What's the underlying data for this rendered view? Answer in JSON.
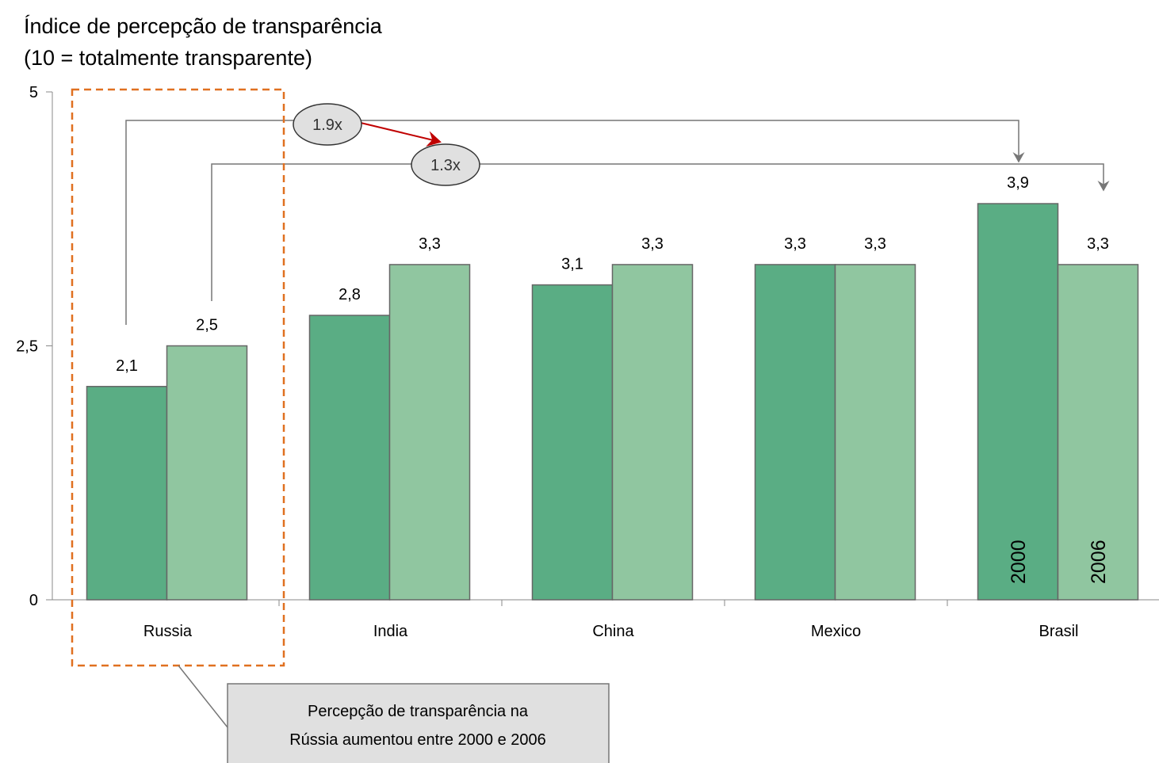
{
  "chart_data": {
    "type": "bar",
    "title": "Índice de percepção de transparência",
    "subtitle": "(10 = totalmente transparente)",
    "categories": [
      "Russia",
      "India",
      "China",
      "Mexico",
      "Brasil"
    ],
    "series": [
      {
        "name": "2000",
        "color": "#5aad84",
        "values": [
          2.1,
          2.8,
          3.1,
          3.3,
          3.9
        ],
        "value_labels": [
          "2,1",
          "2,8",
          "3,1",
          "3,3",
          "3,9"
        ]
      },
      {
        "name": "2006",
        "color": "#90c6a0",
        "values": [
          2.5,
          3.3,
          3.3,
          3.3,
          3.3
        ],
        "value_labels": [
          "2,5",
          "3,3",
          "3,3",
          "3,3",
          "3,3"
        ]
      }
    ],
    "ylim": [
      0,
      5
    ],
    "yticks": [
      0,
      {
        "value": 2.5,
        "label": "2,5"
      },
      5
    ],
    "annotations": [
      "1.9x",
      "1.3x"
    ],
    "callout": [
      "Percepção de transparência na",
      "Rússia aumentou entre 2000 e 2006"
    ]
  }
}
